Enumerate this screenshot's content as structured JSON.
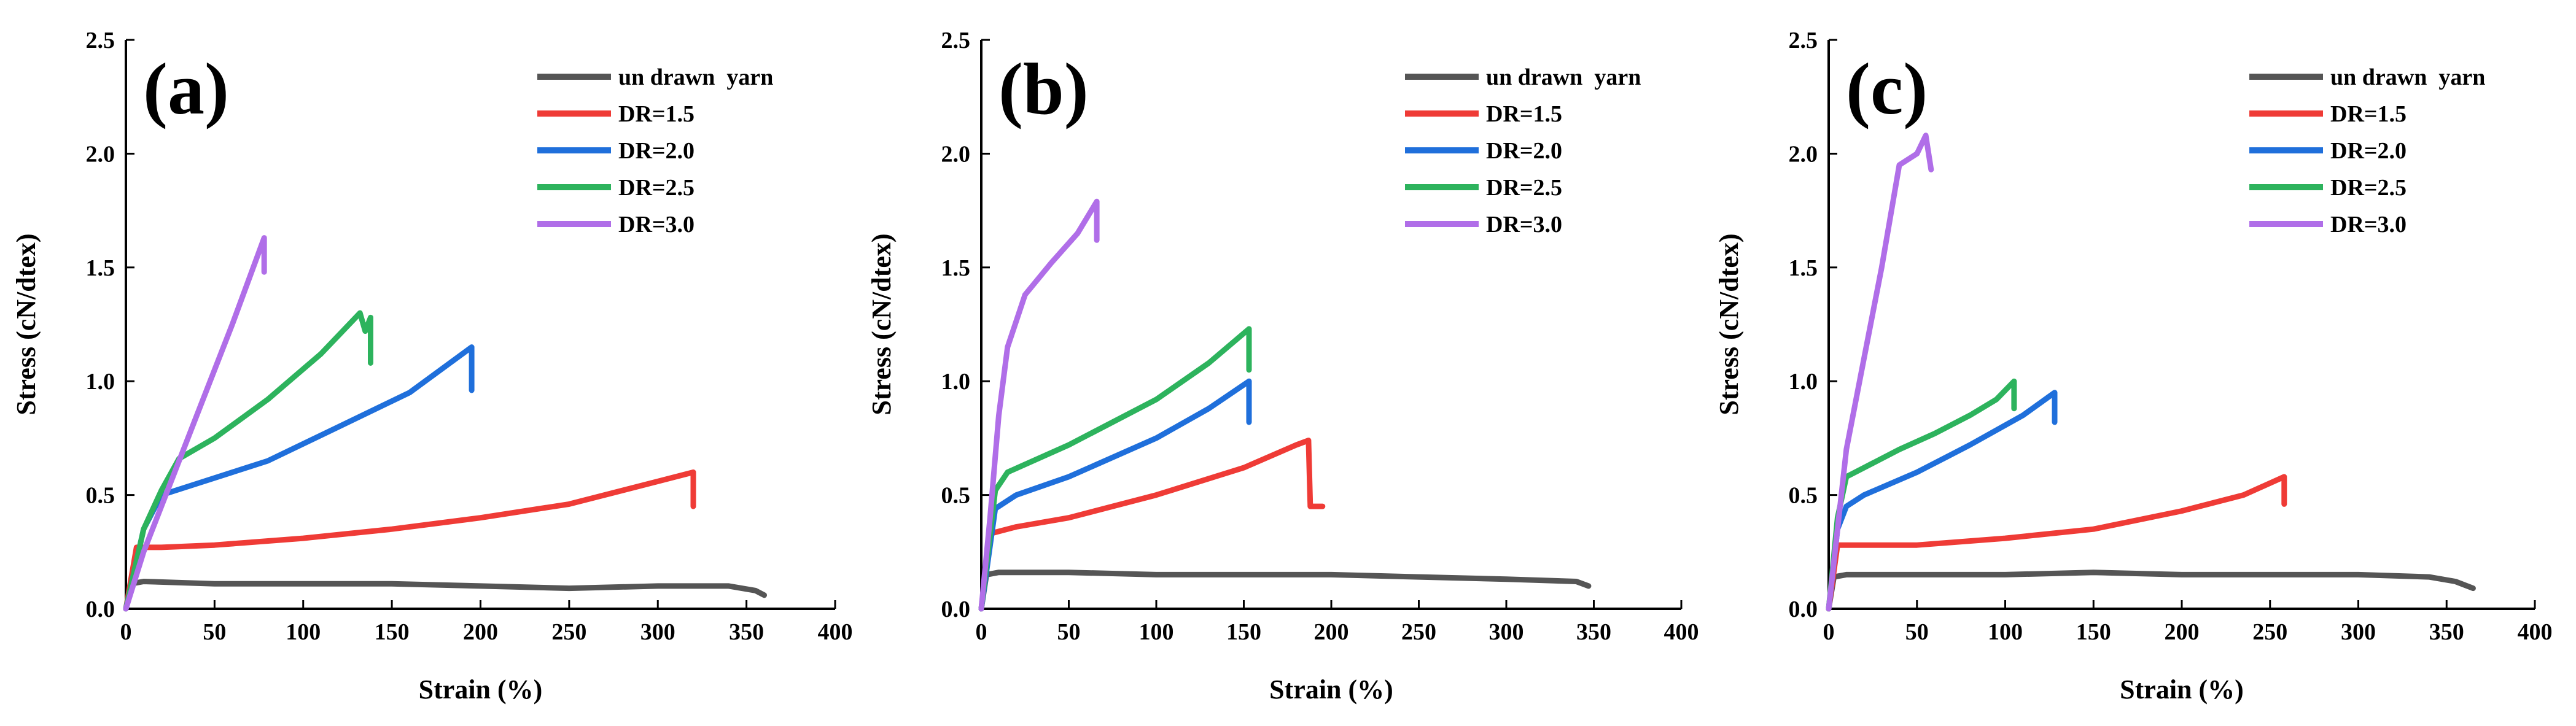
{
  "chart_data": [
    {
      "type": "line",
      "panel_label": "(a)",
      "xlabel": "Strain (%)",
      "ylabel": "Stress (cN/dtex)",
      "xlim": [
        0,
        400
      ],
      "ylim": [
        0,
        2.5
      ],
      "xticks": [
        0,
        50,
        100,
        150,
        200,
        250,
        300,
        350,
        400
      ],
      "yticks": [
        0.0,
        0.5,
        1.0,
        1.5,
        2.0,
        2.5
      ],
      "legend_position": "top-right",
      "series": [
        {
          "name": "un drawn  yarn",
          "color": "#555555",
          "points": [
            [
              0,
              0
            ],
            [
              3,
              0.11
            ],
            [
              10,
              0.12
            ],
            [
              50,
              0.11
            ],
            [
              100,
              0.11
            ],
            [
              150,
              0.11
            ],
            [
              200,
              0.1
            ],
            [
              250,
              0.09
            ],
            [
              300,
              0.1
            ],
            [
              340,
              0.1
            ],
            [
              355,
              0.08
            ],
            [
              360,
              0.06
            ]
          ]
        },
        {
          "name": "DR=1.5",
          "color": "#ef3b36",
          "points": [
            [
              0,
              0
            ],
            [
              6,
              0.27
            ],
            [
              20,
              0.27
            ],
            [
              50,
              0.28
            ],
            [
              100,
              0.31
            ],
            [
              150,
              0.35
            ],
            [
              200,
              0.4
            ],
            [
              250,
              0.46
            ],
            [
              300,
              0.56
            ],
            [
              320,
              0.6
            ],
            [
              320,
              0.45
            ]
          ]
        },
        {
          "name": "DR=2.0",
          "color": "#1f6fdb",
          "points": [
            [
              0,
              0
            ],
            [
              10,
              0.35
            ],
            [
              20,
              0.5
            ],
            [
              40,
              0.55
            ],
            [
              80,
              0.65
            ],
            [
              120,
              0.8
            ],
            [
              160,
              0.95
            ],
            [
              195,
              1.15
            ],
            [
              195,
              0.96
            ]
          ]
        },
        {
          "name": "DR=2.5",
          "color": "#2db35d",
          "points": [
            [
              0,
              0
            ],
            [
              10,
              0.35
            ],
            [
              20,
              0.52
            ],
            [
              30,
              0.66
            ],
            [
              50,
              0.75
            ],
            [
              80,
              0.92
            ],
            [
              110,
              1.12
            ],
            [
              132,
              1.3
            ],
            [
              135,
              1.22
            ],
            [
              138,
              1.28
            ],
            [
              138,
              1.08
            ]
          ]
        },
        {
          "name": "DR=3.0",
          "color": "#b06ee8",
          "points": [
            [
              0,
              0
            ],
            [
              10,
              0.25
            ],
            [
              20,
              0.45
            ],
            [
              40,
              0.85
            ],
            [
              60,
              1.25
            ],
            [
              78,
              1.63
            ],
            [
              78,
              1.48
            ]
          ]
        }
      ]
    },
    {
      "type": "line",
      "panel_label": "(b)",
      "xlabel": "Strain (%)",
      "ylabel": "Stress (cN/dtex)",
      "xlim": [
        0,
        400
      ],
      "ylim": [
        0,
        2.5
      ],
      "xticks": [
        0,
        50,
        100,
        150,
        200,
        250,
        300,
        350,
        400
      ],
      "yticks": [
        0.0,
        0.5,
        1.0,
        1.5,
        2.0,
        2.5
      ],
      "legend_position": "top-right",
      "series": [
        {
          "name": "un drawn  yarn",
          "color": "#555555",
          "points": [
            [
              0,
              0
            ],
            [
              3,
              0.15
            ],
            [
              10,
              0.16
            ],
            [
              50,
              0.16
            ],
            [
              100,
              0.15
            ],
            [
              150,
              0.15
            ],
            [
              200,
              0.15
            ],
            [
              250,
              0.14
            ],
            [
              300,
              0.13
            ],
            [
              340,
              0.12
            ],
            [
              347,
              0.1
            ]
          ]
        },
        {
          "name": "DR=1.5",
          "color": "#ef3b36",
          "points": [
            [
              0,
              0
            ],
            [
              5,
              0.33
            ],
            [
              20,
              0.36
            ],
            [
              50,
              0.4
            ],
            [
              100,
              0.5
            ],
            [
              150,
              0.62
            ],
            [
              180,
              0.72
            ],
            [
              187,
              0.74
            ],
            [
              188,
              0.45
            ],
            [
              195,
              0.45
            ]
          ]
        },
        {
          "name": "DR=2.0",
          "color": "#1f6fdb",
          "points": [
            [
              0,
              0
            ],
            [
              8,
              0.44
            ],
            [
              20,
              0.5
            ],
            [
              50,
              0.58
            ],
            [
              100,
              0.75
            ],
            [
              130,
              0.88
            ],
            [
              153,
              1.0
            ],
            [
              153,
              0.82
            ]
          ]
        },
        {
          "name": "DR=2.5",
          "color": "#2db35d",
          "points": [
            [
              0,
              0
            ],
            [
              8,
              0.52
            ],
            [
              15,
              0.6
            ],
            [
              50,
              0.72
            ],
            [
              100,
              0.92
            ],
            [
              130,
              1.08
            ],
            [
              153,
              1.23
            ],
            [
              153,
              1.05
            ]
          ]
        },
        {
          "name": "DR=3.0",
          "color": "#b06ee8",
          "points": [
            [
              0,
              0
            ],
            [
              5,
              0.4
            ],
            [
              10,
              0.85
            ],
            [
              15,
              1.15
            ],
            [
              25,
              1.38
            ],
            [
              40,
              1.52
            ],
            [
              55,
              1.65
            ],
            [
              66,
              1.79
            ],
            [
              66,
              1.62
            ]
          ]
        }
      ]
    },
    {
      "type": "line",
      "panel_label": "(c)",
      "xlabel": "Strain (%)",
      "ylabel": "Stress (cN/dtex)",
      "xlim": [
        0,
        400
      ],
      "ylim": [
        0,
        2.5
      ],
      "xticks": [
        0,
        50,
        100,
        150,
        200,
        250,
        300,
        350,
        400
      ],
      "yticks": [
        0.0,
        0.5,
        1.0,
        1.5,
        2.0,
        2.5
      ],
      "legend_position": "top-right",
      "series": [
        {
          "name": "un drawn  yarn",
          "color": "#555555",
          "points": [
            [
              0,
              0
            ],
            [
              3,
              0.14
            ],
            [
              10,
              0.15
            ],
            [
              50,
              0.15
            ],
            [
              100,
              0.15
            ],
            [
              150,
              0.16
            ],
            [
              200,
              0.15
            ],
            [
              250,
              0.15
            ],
            [
              300,
              0.15
            ],
            [
              340,
              0.14
            ],
            [
              355,
              0.12
            ],
            [
              365,
              0.09
            ]
          ]
        },
        {
          "name": "DR=1.5",
          "color": "#ef3b36",
          "points": [
            [
              0,
              0
            ],
            [
              5,
              0.28
            ],
            [
              20,
              0.28
            ],
            [
              50,
              0.28
            ],
            [
              100,
              0.31
            ],
            [
              150,
              0.35
            ],
            [
              200,
              0.43
            ],
            [
              235,
              0.5
            ],
            [
              258,
              0.58
            ],
            [
              258,
              0.46
            ]
          ]
        },
        {
          "name": "DR=2.0",
          "color": "#1f6fdb",
          "points": [
            [
              0,
              0
            ],
            [
              5,
              0.35
            ],
            [
              10,
              0.45
            ],
            [
              20,
              0.5
            ],
            [
              50,
              0.6
            ],
            [
              80,
              0.72
            ],
            [
              110,
              0.85
            ],
            [
              128,
              0.95
            ],
            [
              128,
              0.82
            ]
          ]
        },
        {
          "name": "DR=2.5",
          "color": "#2db35d",
          "points": [
            [
              0,
              0
            ],
            [
              5,
              0.4
            ],
            [
              10,
              0.58
            ],
            [
              20,
              0.62
            ],
            [
              40,
              0.7
            ],
            [
              60,
              0.77
            ],
            [
              80,
              0.85
            ],
            [
              95,
              0.92
            ],
            [
              105,
              1.0
            ],
            [
              105,
              0.88
            ]
          ]
        },
        {
          "name": "DR=3.0",
          "color": "#b06ee8",
          "points": [
            [
              0,
              0
            ],
            [
              5,
              0.35
            ],
            [
              10,
              0.7
            ],
            [
              20,
              1.1
            ],
            [
              30,
              1.5
            ],
            [
              40,
              1.95
            ],
            [
              50,
              2.0
            ],
            [
              55,
              2.08
            ],
            [
              58,
              1.93
            ]
          ]
        }
      ]
    }
  ]
}
